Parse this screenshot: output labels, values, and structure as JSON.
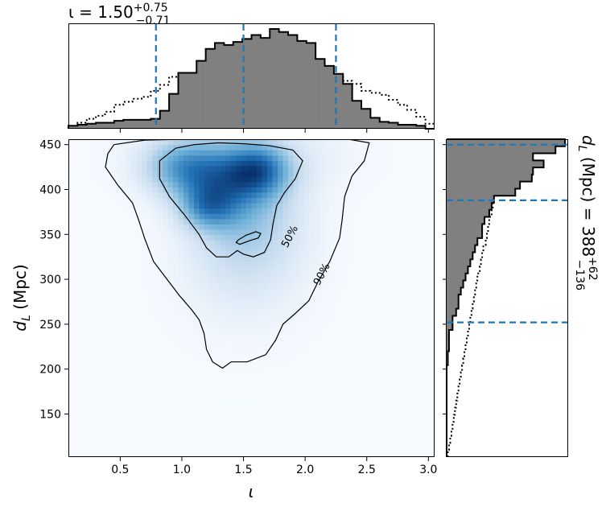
{
  "chart_data": [
    {
      "type": "heatmap",
      "panel": "joint-density",
      "xlabel": "ι",
      "ylabel_main": "d",
      "ylabel_sub": "L",
      "ylabel_unit": " (Mpc)",
      "xlim": [
        0.08,
        3.05
      ],
      "ylim": [
        102,
        456
      ],
      "xticks": [
        0.5,
        1.0,
        1.5,
        2.0,
        2.5,
        3.0
      ],
      "xtick_labels": [
        "0.5",
        "1.0",
        "1.5",
        "2.0",
        "2.5",
        "3.0"
      ],
      "yticks": [
        150,
        200,
        250,
        300,
        350,
        400,
        450
      ],
      "ytick_labels": [
        "150",
        "200",
        "250",
        "300",
        "350",
        "400",
        "450"
      ],
      "colormap": [
        "#f7fbff",
        "#c6dbef",
        "#6baed6",
        "#2171b5",
        "#08306b"
      ],
      "density_components": [
        {
          "x": 1.0,
          "y": 425,
          "sx": 0.22,
          "sy": 22,
          "w": 0.75
        },
        {
          "x": 1.3,
          "y": 405,
          "sx": 0.22,
          "sy": 28,
          "w": 0.7
        },
        {
          "x": 1.62,
          "y": 422,
          "sx": 0.18,
          "sy": 20,
          "w": 1.0
        },
        {
          "x": 1.2,
          "y": 380,
          "sx": 0.15,
          "sy": 16,
          "w": 0.55
        },
        {
          "x": 1.55,
          "y": 375,
          "sx": 0.3,
          "sy": 40,
          "w": 0.45
        },
        {
          "x": 1.5,
          "y": 330,
          "sx": 0.35,
          "sy": 45,
          "w": 0.22
        },
        {
          "x": 1.5,
          "y": 280,
          "sx": 0.4,
          "sy": 50,
          "w": 0.07
        },
        {
          "x": 1.5,
          "y": 440,
          "sx": 0.55,
          "sy": 30,
          "w": 0.25
        }
      ],
      "contours": [
        {
          "label": "50%",
          "label_at": [
            1.87,
            348
          ],
          "label_angle": -62,
          "paths": [
            [
              [
                0.95,
                446
              ],
              [
                1.1,
                450
              ],
              [
                1.3,
                452
              ],
              [
                1.5,
                451
              ],
              [
                1.7,
                449
              ],
              [
                1.9,
                444
              ],
              [
                1.98,
                432
              ],
              [
                1.92,
                412
              ],
              [
                1.83,
                396
              ],
              [
                1.77,
                382
              ],
              [
                1.74,
                362
              ],
              [
                1.72,
                344
              ],
              [
                1.67,
                330
              ],
              [
                1.58,
                325
              ],
              [
                1.5,
                328
              ],
              [
                1.45,
                332
              ],
              [
                1.38,
                325
              ],
              [
                1.28,
                325
              ],
              [
                1.2,
                335
              ],
              [
                1.14,
                350
              ],
              [
                1.02,
                372
              ],
              [
                0.9,
                392
              ],
              [
                0.82,
                412
              ],
              [
                0.82,
                432
              ],
              [
                0.95,
                446
              ]
            ],
            [
              [
                1.46,
                344
              ],
              [
                1.52,
                349
              ],
              [
                1.6,
                353
              ],
              [
                1.64,
                351
              ],
              [
                1.62,
                346
              ],
              [
                1.55,
                343
              ],
              [
                1.47,
                339
              ],
              [
                1.44,
                341
              ],
              [
                1.46,
                344
              ]
            ]
          ]
        },
        {
          "label": "90%",
          "label_at": [
            2.13,
            306
          ],
          "label_angle": -62,
          "paths": [
            [
              [
                0.45,
                450
              ],
              [
                0.7,
                455
              ],
              [
                1.0,
                456
              ],
              [
                1.5,
                456
              ],
              [
                2.0,
                456
              ],
              [
                2.35,
                456
              ],
              [
                2.52,
                452
              ],
              [
                2.48,
                432
              ],
              [
                2.38,
                415
              ],
              [
                2.32,
                392
              ],
              [
                2.3,
                366
              ],
              [
                2.28,
                346
              ],
              [
                2.2,
                320
              ],
              [
                2.1,
                296
              ],
              [
                2.03,
                276
              ],
              [
                1.92,
                262
              ],
              [
                1.82,
                250
              ],
              [
                1.76,
                232
              ],
              [
                1.68,
                216
              ],
              [
                1.53,
                208
              ],
              [
                1.4,
                208
              ],
              [
                1.33,
                201
              ],
              [
                1.25,
                208
              ],
              [
                1.2,
                222
              ],
              [
                1.18,
                240
              ],
              [
                1.14,
                255
              ],
              [
                1.08,
                266
              ],
              [
                0.98,
                282
              ],
              [
                0.88,
                300
              ],
              [
                0.77,
                320
              ],
              [
                0.7,
                345
              ],
              [
                0.65,
                366
              ],
              [
                0.6,
                385
              ],
              [
                0.48,
                405
              ],
              [
                0.38,
                425
              ],
              [
                0.4,
                440
              ],
              [
                0.45,
                450
              ]
            ]
          ]
        }
      ]
    },
    {
      "type": "bar",
      "panel": "iota-marginal",
      "title_prefix": "ι = 1.50",
      "title_sup": "+0.75",
      "title_sub": "−0.71",
      "bin_edges_range": [
        0.08,
        3.05
      ],
      "bins": 40,
      "posterior_counts": [
        0.03,
        0.04,
        0.05,
        0.06,
        0.06,
        0.08,
        0.09,
        0.09,
        0.09,
        0.1,
        0.18,
        0.35,
        0.56,
        0.56,
        0.68,
        0.8,
        0.86,
        0.84,
        0.87,
        0.9,
        0.94,
        0.91,
        1.0,
        0.97,
        0.94,
        0.88,
        0.86,
        0.7,
        0.63,
        0.55,
        0.45,
        0.28,
        0.2,
        0.11,
        0.07,
        0.06,
        0.04,
        0.04,
        0.03,
        0.0
      ],
      "prior_counts": [
        0.02,
        0.06,
        0.1,
        0.13,
        0.17,
        0.24,
        0.27,
        0.3,
        0.32,
        0.38,
        0.44,
        0.52,
        0.54,
        0.56,
        0.57,
        0.57,
        0.58,
        0.58,
        0.57,
        0.54,
        0.55,
        0.56,
        0.6,
        0.61,
        0.61,
        0.58,
        0.55,
        0.55,
        0.55,
        0.53,
        0.48,
        0.45,
        0.38,
        0.36,
        0.34,
        0.29,
        0.24,
        0.19,
        0.12,
        0.05
      ],
      "quantiles": [
        0.79,
        1.5,
        2.25
      ],
      "colors": {
        "posterior_fill": "#808080",
        "quantile_line": "#1f77b4"
      }
    },
    {
      "type": "bar",
      "panel": "distance-marginal",
      "side_label_main": "d",
      "side_label_sub": "L",
      "side_label_rest": " (Mpc) = 388",
      "side_label_sup": "+62",
      "side_label_sub2": "−136",
      "bin_edges_range": [
        102,
        456
      ],
      "bins": 45,
      "posterior_counts": [
        0.0,
        0.0,
        0.0,
        0.0,
        0.0,
        0.0,
        0.0,
        0.0,
        0.0,
        0.0,
        0.0,
        0.0,
        0.0,
        0.01,
        0.01,
        0.02,
        0.02,
        0.02,
        0.05,
        0.05,
        0.08,
        0.1,
        0.1,
        0.12,
        0.14,
        0.16,
        0.18,
        0.2,
        0.22,
        0.24,
        0.26,
        0.3,
        0.3,
        0.32,
        0.36,
        0.38,
        0.4,
        0.58,
        0.62,
        0.72,
        0.73,
        0.82,
        0.73,
        0.92,
        1.0
      ],
      "prior_counts": [
        0.01,
        0.02,
        0.03,
        0.04,
        0.05,
        0.06,
        0.07,
        0.08,
        0.09,
        0.1,
        0.11,
        0.12,
        0.13,
        0.14,
        0.15,
        0.16,
        0.17,
        0.18,
        0.19,
        0.2,
        0.21,
        0.22,
        0.23,
        0.24,
        0.25,
        0.26,
        0.28,
        0.29,
        0.3,
        0.31,
        0.33,
        0.34,
        0.35,
        0.36,
        0.38,
        0.39,
        0.4,
        0.42,
        0.43,
        0.45,
        0.46,
        0.48,
        0.5,
        0.52,
        0.55
      ],
      "quantiles": [
        252,
        388,
        450
      ],
      "colors": {
        "posterior_fill": "#808080",
        "quantile_line": "#1f77b4"
      }
    }
  ]
}
